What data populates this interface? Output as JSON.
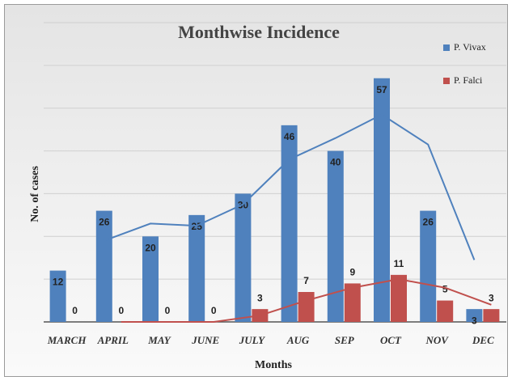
{
  "chart_data": {
    "type": "bar",
    "title": "Monthwise Incidence",
    "x_label": "Months",
    "y_label": "No. of cases",
    "categories": [
      "MARCH",
      "APRIL",
      "MAY",
      "JUNE",
      "JULY",
      "AUG",
      "SEP",
      "OCT",
      "NOV",
      "DEC"
    ],
    "series": [
      {
        "name": "P. Vivax",
        "color": "#4f81bd",
        "values": [
          12,
          26,
          20,
          25,
          30,
          46,
          40,
          57,
          26,
          3
        ]
      },
      {
        "name": "P. Falci",
        "color": "#c0504d",
        "values": [
          0,
          0,
          0,
          0,
          3,
          7,
          9,
          11,
          5,
          3
        ]
      }
    ],
    "ylim": [
      0,
      70
    ],
    "yticks": [
      0,
      10,
      20,
      30,
      40,
      50,
      60,
      70
    ],
    "ytick_labels": false,
    "grid": true,
    "legend": "right",
    "data_labels": true,
    "trendline": {
      "type": "moving-average",
      "period": 2
    }
  }
}
